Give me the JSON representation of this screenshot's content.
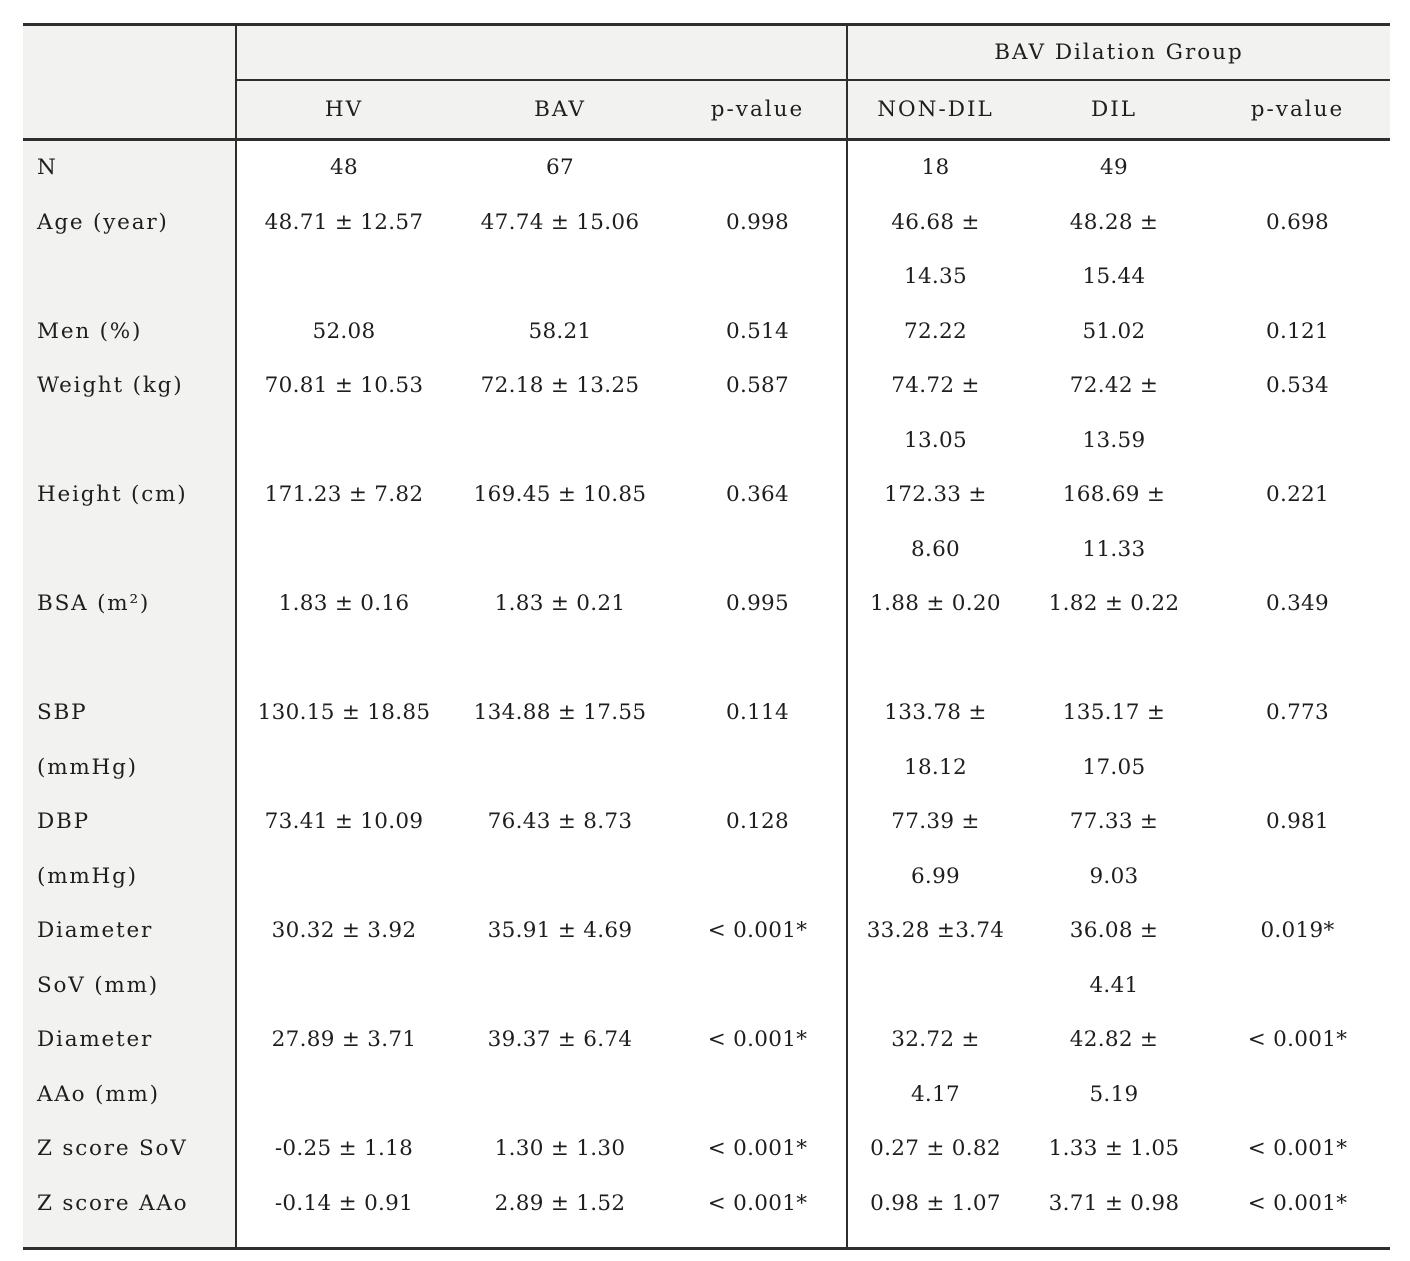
{
  "table": {
    "header": {
      "group_span_label": "BAV Dilation Group",
      "columns": [
        "HV",
        "BAV",
        "p-value",
        "NON-DIL",
        "DIL",
        "p-value"
      ]
    },
    "rows": [
      {
        "label": "N",
        "cells": [
          "48",
          "67",
          "",
          "18",
          "49",
          ""
        ]
      },
      {
        "label": "Age (year)",
        "cells": [
          "48.71 ± 12.57",
          "47.74 ± 15.06",
          "0.998",
          "46.68 ±\n14.35",
          "48.28 ±\n15.44",
          "0.698"
        ]
      },
      {
        "label": "Men (%)",
        "cells": [
          "52.08",
          "58.21",
          "0.514",
          "72.22",
          "51.02",
          "0.121"
        ]
      },
      {
        "label": "Weight (kg)",
        "cells": [
          "70.81 ± 10.53",
          "72.18 ± 13.25",
          "0.587",
          "74.72 ±\n13.05",
          "72.42 ±\n13.59",
          "0.534"
        ]
      },
      {
        "label": "Height (cm)",
        "cells": [
          "171.23 ± 7.82",
          "169.45 ± 10.85",
          "0.364",
          "172.33 ±\n8.60",
          "168.69 ±\n11.33",
          "0.221"
        ]
      },
      {
        "label": "BSA (m²)",
        "cells": [
          "1.83 ± 0.16",
          "1.83 ± 0.21",
          "0.995",
          "1.88 ± 0.20",
          "1.82 ± 0.22",
          "0.349"
        ]
      },
      {
        "label": "SBP\n(mmHg)",
        "cells": [
          "130.15 ± 18.85",
          "134.88 ± 17.55",
          "0.114",
          "133.78 ±\n18.12",
          "135.17 ±\n17.05",
          "0.773"
        ]
      },
      {
        "label": "DBP\n(mmHg)",
        "cells": [
          "73.41 ± 10.09",
          "76.43 ± 8.73",
          "0.128",
          "77.39 ±\n6.99",
          "77.33 ±\n9.03",
          "0.981"
        ]
      },
      {
        "label": "Diameter\nSoV (mm)",
        "cells": [
          "30.32 ± 3.92",
          "35.91 ± 4.69",
          "< 0.001*",
          "33.28 ±3.74",
          "36.08 ±\n4.41",
          "0.019*"
        ]
      },
      {
        "label": "Diameter\nAAo (mm)",
        "cells": [
          "27.89 ± 3.71",
          "39.37 ± 6.74",
          "< 0.001*",
          "32.72 ±\n4.17",
          "42.82 ±\n5.19",
          "< 0.001*"
        ]
      },
      {
        "label": "Z score SoV",
        "cells": [
          "-0.25 ± 1.18",
          "1.30 ± 1.30",
          "< 0.001*",
          "0.27 ± 0.82",
          "1.33 ± 1.05",
          "< 0.001*"
        ]
      },
      {
        "label": "Z score AAo",
        "cells": [
          "-0.14 ± 0.91",
          "2.89 ± 1.52",
          "< 0.001*",
          "0.98 ± 1.07",
          "3.71 ± 0.98",
          "< 0.001*"
        ]
      }
    ]
  },
  "colors": {
    "header_bg": "#f2f2f0",
    "label_column_bg": "#f2f2f0",
    "data_bg": "#ffffff",
    "rule": "#2e2e2e"
  }
}
